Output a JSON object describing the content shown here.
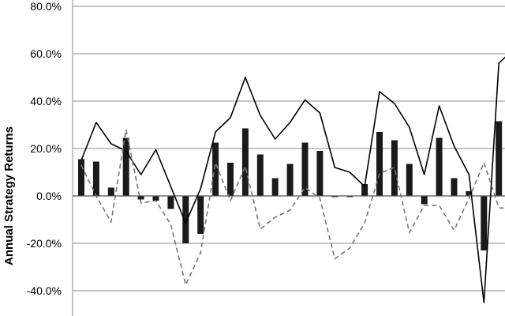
{
  "chart_data": {
    "type": "bar",
    "title": "",
    "xlabel": "",
    "ylabel": "Annual Strategy Returns",
    "y_tick_labels": [
      "80.0%",
      "60.0%",
      "40.0%",
      "20.0%",
      "0.0%",
      "-20.0%",
      "-40.0%"
    ],
    "y_ticks": [
      80,
      60,
      40,
      20,
      0,
      -20,
      -40
    ],
    "ylim": [
      -50,
      80
    ],
    "grid": true,
    "legend": "none",
    "x": [
      1,
      2,
      3,
      4,
      5,
      6,
      7,
      8,
      9,
      10,
      11,
      12,
      13,
      14,
      15,
      16,
      17,
      18,
      19,
      20,
      21,
      22,
      23,
      24,
      25,
      26,
      27,
      28,
      29,
      30
    ],
    "series": [
      {
        "type": "bar",
        "color": "#1a1a1a",
        "values": [
          15.5,
          14.5,
          3.5,
          24.5,
          -1.5,
          -2.0,
          -5.5,
          -20.0,
          -16.0,
          22.5,
          14.0,
          28.5,
          17.5,
          7.5,
          13.5,
          22.5,
          19.0,
          -0.5,
          -0.5,
          5.0,
          27.0,
          23.5,
          13.5,
          -3.5,
          24.5,
          7.5,
          2.0,
          -23.0,
          31.5,
          0
        ]
      },
      {
        "type": "line",
        "style": "solid",
        "color": "#000000",
        "values": [
          15,
          31,
          22,
          19,
          9,
          19.5,
          4,
          -11.5,
          3,
          27,
          33,
          50,
          34,
          24,
          31,
          40.5,
          35,
          12,
          10,
          4,
          44,
          39,
          29,
          9,
          38,
          21,
          9,
          -45,
          56,
          62
        ]
      },
      {
        "type": "line",
        "style": "dashed",
        "color": "#777777",
        "values": [
          13,
          0,
          -11,
          28,
          -3,
          -2,
          -12,
          -37.5,
          -24,
          14,
          -2,
          12.5,
          -14,
          -9,
          -6,
          3.5,
          -1,
          -26.5,
          -22,
          -11.5,
          9.5,
          12,
          -15.5,
          -4,
          -4,
          -14.5,
          -1,
          14,
          -5,
          -5.5
        ]
      }
    ]
  }
}
